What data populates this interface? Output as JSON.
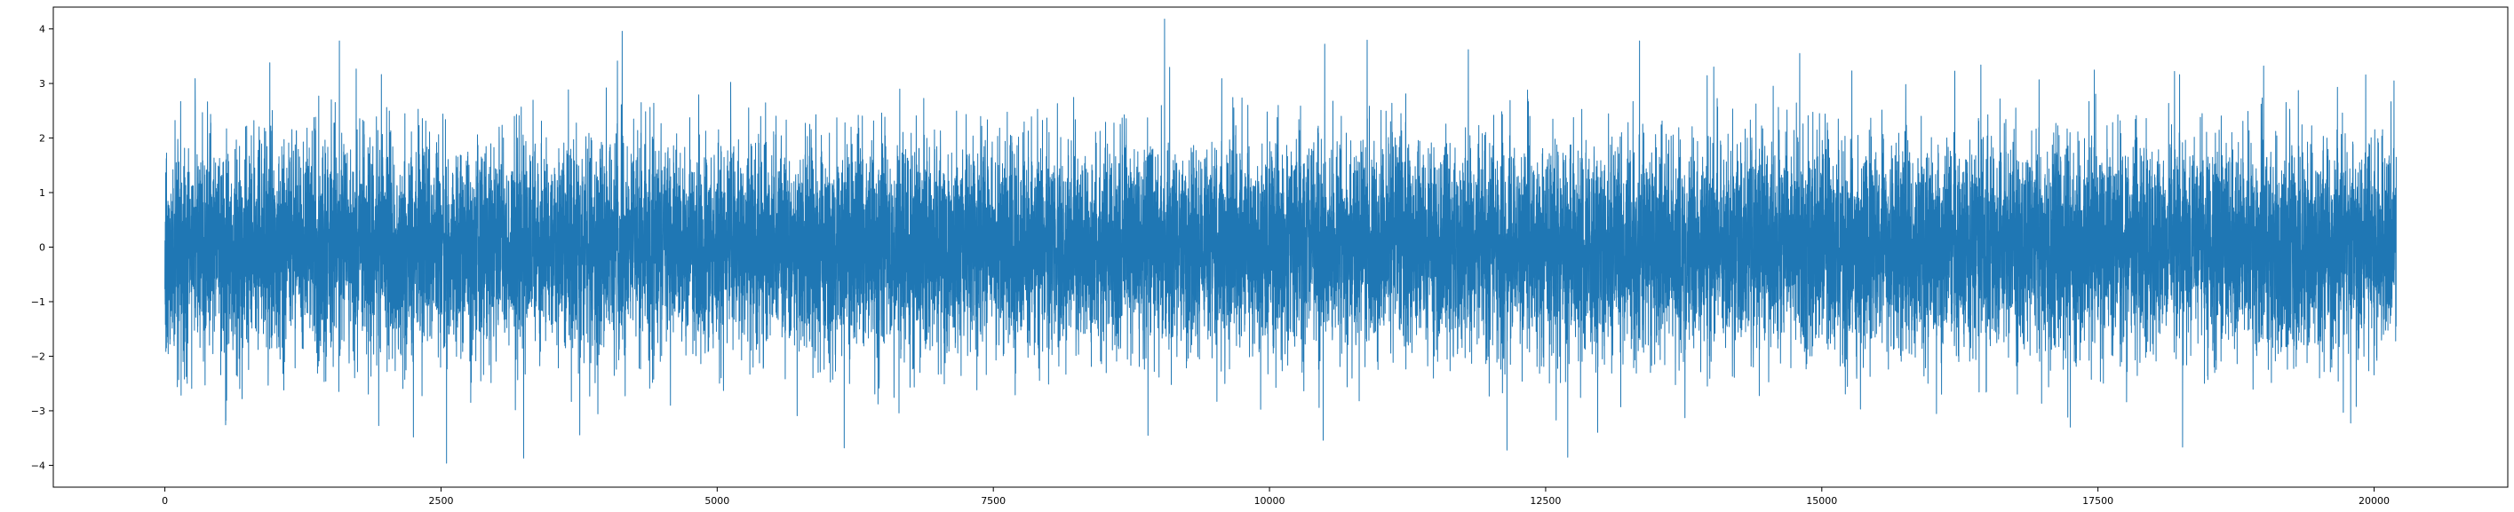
{
  "chart_data": {
    "type": "line",
    "title": "",
    "xlabel": "",
    "ylabel": "",
    "xlim": [
      -1010,
      21210
    ],
    "ylim": [
      -4.4,
      4.4
    ],
    "x_range": [
      0,
      20200
    ],
    "y_extent": [
      -3.96,
      4.18
    ],
    "point_count": 20201,
    "x_ticks": [
      0,
      2500,
      5000,
      7500,
      10000,
      12500,
      15000,
      17500,
      20000
    ],
    "x_tick_labels": [
      "0",
      "2500",
      "5000",
      "7500",
      "10000",
      "12500",
      "15000",
      "17500",
      "20000"
    ],
    "y_ticks": [
      -4,
      -3,
      -2,
      -1,
      0,
      1,
      2,
      3,
      4
    ],
    "y_tick_labels": [
      "−4",
      "−3",
      "−2",
      "−1",
      "0",
      "1",
      "2",
      "3",
      "4"
    ],
    "grid": false,
    "legend": "none",
    "series": [
      {
        "distribution": "gaussian white noise",
        "mean": 0,
        "std": 0.95,
        "peaks": [
          {
            "x": 9050,
            "y": 4.18
          },
          {
            "x": 1580,
            "y": 3.78
          },
          {
            "x": 13350,
            "y": 3.78
          },
          {
            "x": 10500,
            "y": 3.72
          },
          {
            "x": 11800,
            "y": 3.62
          },
          {
            "x": 14800,
            "y": 3.55
          },
          {
            "x": 950,
            "y": 3.38
          },
          {
            "x": 19000,
            "y": 3.32
          },
          {
            "x": 2550,
            "y": -3.96
          },
          {
            "x": 12700,
            "y": -3.85
          },
          {
            "x": 12150,
            "y": -3.72
          },
          {
            "x": 6150,
            "y": -3.68
          },
          {
            "x": 2250,
            "y": -3.48
          },
          {
            "x": 8900,
            "y": -3.45
          },
          {
            "x": 17250,
            "y": -3.3
          }
        ]
      }
    ]
  },
  "colors": {
    "line": "#1f77b4",
    "axes": "#000000",
    "background": "#ffffff"
  }
}
